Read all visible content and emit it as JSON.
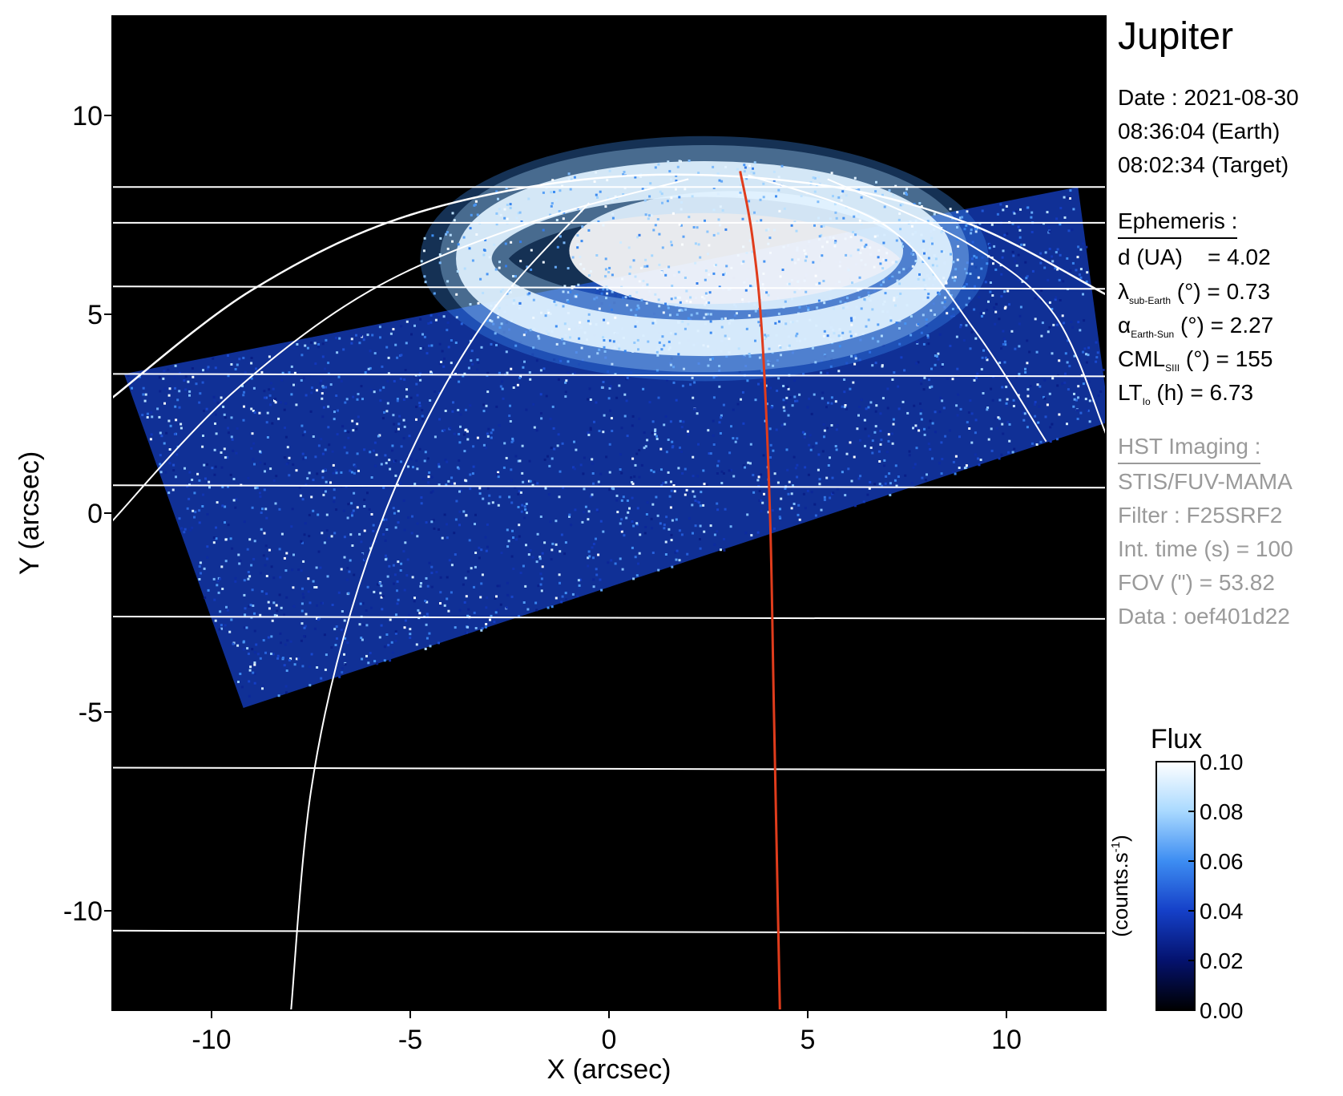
{
  "chart_data": {
    "type": "heatmap",
    "xlabel": "X (arcsec)",
    "ylabel": "Y (arcsec)",
    "xlim": [
      -12.5,
      12.5
    ],
    "ylim": [
      -12.5,
      12.5
    ],
    "xticks": [
      -10,
      -5,
      0,
      5,
      10
    ],
    "yticks": [
      -10,
      -5,
      0,
      5,
      10
    ],
    "xtick_labels": [
      "-10",
      "-5",
      "0",
      "5",
      "10"
    ],
    "ytick_labels": [
      "-10",
      "-5",
      "0",
      "5",
      "10"
    ],
    "colorbar": {
      "title": "Flux",
      "label": "(counts.s",
      "label_exp": "-1",
      "label_close": ")",
      "ticks": [
        0.0,
        0.02,
        0.04,
        0.06,
        0.08,
        0.1
      ],
      "tick_labels": [
        "0.00",
        "0.02",
        "0.04",
        "0.06",
        "0.08",
        "0.10"
      ],
      "range": [
        0.0,
        0.1
      ],
      "colors": [
        "#000000",
        "#04126e",
        "#1540c8",
        "#3d8df2",
        "#a9d9ff",
        "#ffffff"
      ]
    },
    "image_footprint": [
      [
        -12.2,
        3.5
      ],
      [
        11.8,
        8.2
      ],
      [
        12.6,
        2.3
      ],
      [
        -9.2,
        -4.9
      ]
    ],
    "grid": {
      "color": "#ffffff",
      "latitude_lines_y": [
        8.2,
        7.3,
        5.7,
        3.5,
        0.7,
        -2.6,
        -6.4,
        -10.5
      ],
      "longitude_curves": [
        [
          [
            -8.0,
            -12.5
          ],
          [
            -7.5,
            -7.0
          ],
          [
            -6.5,
            -2.5
          ],
          [
            -5.0,
            1.5
          ],
          [
            -3.0,
            5.0
          ],
          [
            -0.5,
            7.8
          ]
        ],
        [
          [
            -12.5,
            -0.2
          ],
          [
            -9.5,
            3.0
          ],
          [
            -6.0,
            5.6
          ],
          [
            -2.0,
            7.3
          ],
          [
            2.0,
            8.4
          ]
        ],
        [
          [
            5.5,
            8.4
          ],
          [
            9.0,
            6.8
          ],
          [
            11.2,
            5.0
          ],
          [
            12.5,
            2.0
          ]
        ],
        [
          [
            3.5,
            8.5
          ],
          [
            7.0,
            7.2
          ],
          [
            9.2,
            4.6
          ],
          [
            11.0,
            1.8
          ]
        ]
      ],
      "limb": [
        [
          -12.5,
          2.9
        ],
        [
          -9.0,
          5.6
        ],
        [
          -5.0,
          7.5
        ],
        [
          0.0,
          8.45
        ],
        [
          5.0,
          8.3
        ],
        [
          9.0,
          7.3
        ],
        [
          12.5,
          5.5
        ]
      ]
    },
    "reference_line": {
      "color": "#e03c1c",
      "points": [
        [
          3.3,
          8.6
        ],
        [
          3.6,
          7.0
        ],
        [
          3.85,
          4.5
        ],
        [
          4.05,
          0.0
        ],
        [
          4.15,
          -5.0
        ],
        [
          4.3,
          -12.5
        ]
      ]
    },
    "auroral_oval": {
      "center": [
        2.4,
        6.4
      ],
      "radius": [
        5.8,
        2.0
      ],
      "thickness": 0.9,
      "inner_bright_center": [
        3.2,
        6.6
      ],
      "inner_bright_radius": [
        4.2,
        1.5
      ]
    },
    "seed": 7
  },
  "info": {
    "target": "Jupiter",
    "date": "Date : 2021-08-30",
    "time_earth": "08:36:04 (Earth)",
    "time_target": "08:02:34 (Target)",
    "ephemeris_title": "Ephemeris :",
    "ephemeris": [
      {
        "sym": "d (UA)",
        "sub": "",
        "rest": "    = 4.02"
      },
      {
        "sym": "λ",
        "sub": "sub-Earth",
        "rest": " (°) = 0.73"
      },
      {
        "sym": "α",
        "sub": "Earth-Sun",
        "rest": " (°) = 2.27"
      },
      {
        "sym": "CML",
        "sub": "SIII",
        "rest": " (°) = 155"
      },
      {
        "sym": "LT",
        "sub": "Io",
        "rest": " (h) = 6.73"
      }
    ],
    "hst_title": "HST Imaging :",
    "hst": [
      "STIS/FUV-MAMA",
      "Filter : F25SRF2",
      "Int. time (s) = 100",
      "FOV (\") = 53.82",
      "Data : oef401d22"
    ]
  }
}
